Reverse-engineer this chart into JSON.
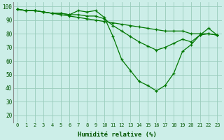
{
  "xlabel": "Humidité relative (%)",
  "bg_color": "#cceee8",
  "grid_color": "#99ccbb",
  "line_color": "#007700",
  "xlim": [
    -0.5,
    23.5
  ],
  "ylim": [
    15,
    103
  ],
  "yticks": [
    20,
    30,
    40,
    50,
    60,
    70,
    80,
    90,
    100
  ],
  "xticks": [
    0,
    1,
    2,
    3,
    4,
    5,
    6,
    7,
    8,
    9,
    10,
    11,
    12,
    13,
    14,
    15,
    16,
    17,
    18,
    19,
    20,
    21,
    22,
    23
  ],
  "series": [
    [
      98,
      97,
      97,
      96,
      95,
      95,
      94,
      97,
      96,
      97,
      92,
      78,
      61,
      53,
      45,
      42,
      38,
      42,
      51,
      67,
      72,
      79,
      84,
      79
    ],
    [
      98,
      97,
      97,
      96,
      95,
      95,
      94,
      94,
      93,
      93,
      91,
      86,
      82,
      78,
      74,
      71,
      68,
      70,
      73,
      76,
      74,
      79,
      80,
      79
    ],
    [
      98,
      97,
      97,
      96,
      95,
      94,
      93,
      92,
      91,
      90,
      89,
      88,
      87,
      86,
      85,
      84,
      83,
      82,
      82,
      82,
      80,
      80,
      80,
      79
    ]
  ]
}
